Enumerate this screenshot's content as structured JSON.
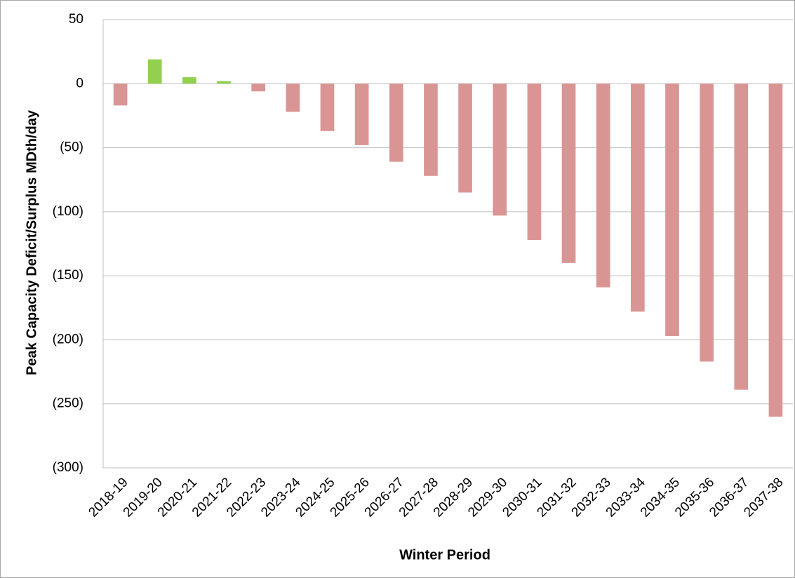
{
  "chart_data": {
    "type": "bar",
    "y_label": "Peak Capacity Deficit/Surplus MDth/day",
    "x_label": "Winter Period",
    "categories": [
      "2018-19",
      "2019-20",
      "2020-21",
      "2021-22",
      "2022-23",
      "2023-24",
      "2024-25",
      "2025-26",
      "2026-27",
      "2027-28",
      "2028-29",
      "2029-30",
      "2030-31",
      "2031-32",
      "2032-33",
      "2033-34",
      "2034-35",
      "2035-36",
      "2036-37",
      "2037-38"
    ],
    "values": [
      -17,
      19,
      5,
      2,
      -6,
      -22,
      -37,
      -48,
      -61,
      -72,
      -85,
      -103,
      -122,
      -140,
      -159,
      -178,
      -197,
      -217,
      -239,
      -260
    ],
    "positive_color": "#92d050",
    "negative_color": "#d99594",
    "ylim": [
      -300,
      50
    ],
    "yticks": [
      50,
      0,
      {
        "value": -50,
        "label": "(50)"
      },
      {
        "value": -100,
        "label": "(100)"
      },
      {
        "value": -150,
        "label": "(150)"
      },
      {
        "value": -200,
        "label": "(200)"
      },
      {
        "value": -250,
        "label": "(250)"
      },
      {
        "value": -300,
        "label": "(300)"
      }
    ],
    "grid": true
  }
}
